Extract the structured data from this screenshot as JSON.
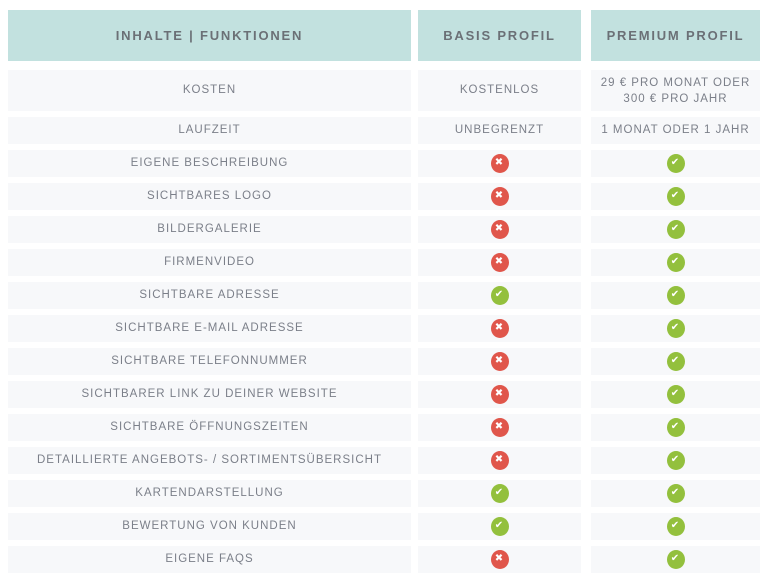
{
  "table": {
    "header": {
      "features": "INHALTE | FUNKTIONEN",
      "basis": "BASIS PROFIL",
      "premium": "PREMIUM PROFIL"
    },
    "text_rows": [
      {
        "label": "KOSTEN",
        "basis": "KOSTENLOS",
        "premium_lines": [
          "29 € PRO MONAT ODER",
          "300 € PRO JAHR"
        ]
      },
      {
        "label": "LAUFZEIT",
        "basis": "UNBEGRENZT",
        "premium": "1 MONAT ODER 1 JAHR"
      }
    ],
    "feature_rows": [
      {
        "label": "EIGENE BESCHREIBUNG",
        "basis": "cross",
        "premium": "check"
      },
      {
        "label": "SICHTBARES LOGO",
        "basis": "cross",
        "premium": "check"
      },
      {
        "label": "BILDERGALERIE",
        "basis": "cross",
        "premium": "check"
      },
      {
        "label": "FIRMENVIDEO",
        "basis": "cross",
        "premium": "check"
      },
      {
        "label": "SICHTBARE ADRESSE",
        "basis": "check",
        "premium": "check"
      },
      {
        "label": "SICHTBARE E-MAIL ADRESSE",
        "basis": "cross",
        "premium": "check"
      },
      {
        "label": "SICHTBARE TELEFONNUMMER",
        "basis": "cross",
        "premium": "check"
      },
      {
        "label": "SICHTBARER LINK ZU DEINER WEBSITE",
        "basis": "cross",
        "premium": "check"
      },
      {
        "label": "SICHTBARE ÖFFNUNGSZEITEN",
        "basis": "cross",
        "premium": "check"
      },
      {
        "label": "DETAILLIERTE ANGEBOTS- / SORTIMENTSÜBERSICHT",
        "basis": "cross",
        "premium": "check"
      },
      {
        "label": "KARTENDARSTELLUNG",
        "basis": "check",
        "premium": "check"
      },
      {
        "label": "BEWERTUNG VON KUNDEN",
        "basis": "check",
        "premium": "check"
      },
      {
        "label": "EIGENE FAQS",
        "basis": "cross",
        "premium": "check"
      }
    ]
  },
  "colors": {
    "header_bg": "#c2e1df",
    "row_bg": "#f7f8fa",
    "header_text": "#6b7076",
    "body_text": "#7b7f89",
    "check": "#93c03d",
    "cross": "#e0564b"
  }
}
